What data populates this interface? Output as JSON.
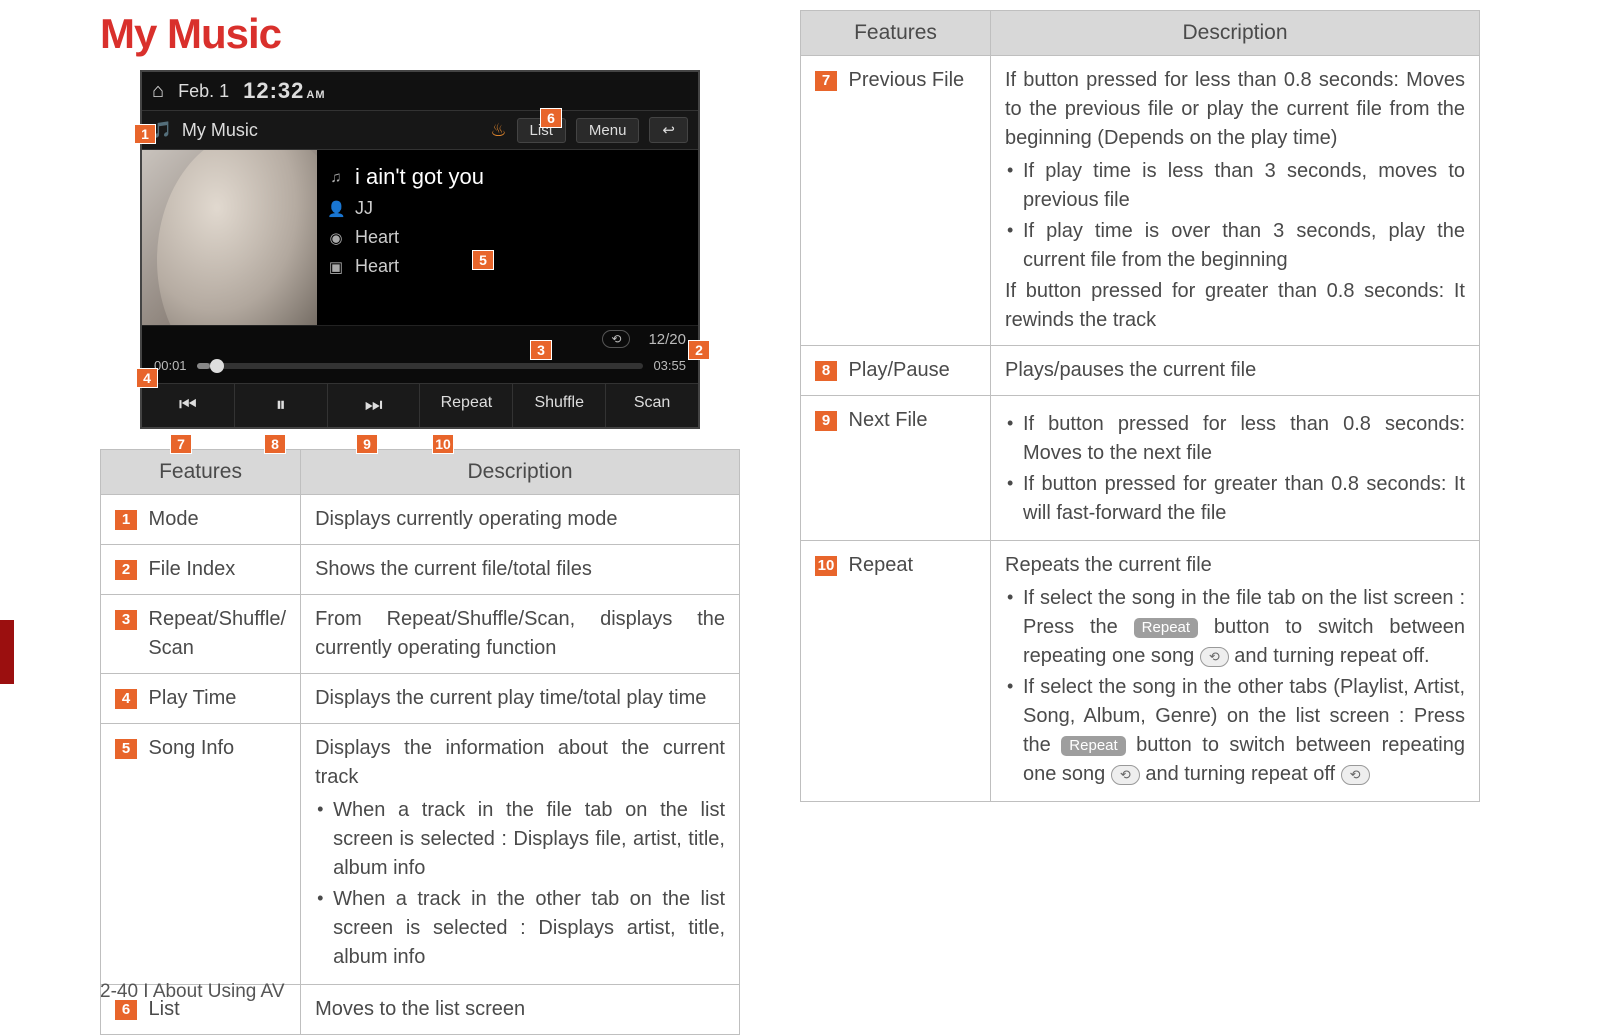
{
  "title": "My Music",
  "footer": "2-40 I  About Using AV",
  "screenshot": {
    "status": {
      "date": "Feb.  1",
      "time": "12:32",
      "ampm": "AM"
    },
    "modebar": {
      "icon": "🎵",
      "label": "My Music",
      "list": "List",
      "menu": "Menu",
      "back": "↩"
    },
    "song": {
      "title": "i ain't got you",
      "artist": "JJ",
      "album": "Heart",
      "album2": "Heart"
    },
    "statusrow": {
      "index": "12/20"
    },
    "time": {
      "elapsed": "00:01",
      "total": "03:55"
    },
    "controls": {
      "prev": "⏮",
      "pause": "⏸",
      "next": "⏭",
      "repeat": "Repeat",
      "shuffle": "Shuffle",
      "scan": "Scan"
    }
  },
  "tables": {
    "headers": {
      "features": "Features",
      "description": "Description"
    },
    "left": [
      {
        "n": "1",
        "f": "Mode",
        "d": "Displays currently operating mode"
      },
      {
        "n": "2",
        "f": "File Index",
        "d": "Shows the current file/total files"
      },
      {
        "n": "3",
        "f": "Repeat/Shuffle/\nScan",
        "d": "From Repeat/Shuffle/Scan, displays the currently operating function"
      },
      {
        "n": "4",
        "f": "Play Time",
        "d": "Displays the current play time/total play time"
      },
      {
        "n": "5",
        "f": "Song Info",
        "d": "Displays the information about the current track",
        "b": [
          "When a track in the file tab on the list screen is selected : Displays file, artist, title, album info",
          "When a track in the other tab on the list screen is selected : Displays artist, title, album info"
        ]
      },
      {
        "n": "6",
        "f": "List",
        "d": "Moves to the list screen"
      }
    ],
    "right": [
      {
        "n": "7",
        "f": "Previous File",
        "pre": "If button pressed for less than 0.8 seconds: Moves to the previous file or play the current file from the beginning (Depends on the play time)",
        "b": [
          "If play time is less than 3 seconds, moves to previous file",
          "If play time is over than 3 seconds, play the current file from the beginning"
        ],
        "post": "If button pressed for greater than 0.8 seconds: It rewinds the track"
      },
      {
        "n": "8",
        "f": "Play/Pause",
        "d": "Plays/pauses the current file"
      },
      {
        "n": "9",
        "f": "Next File",
        "b": [
          "If button pressed for less than 0.8 seconds: Moves to the next file",
          "If button pressed for greater than 0.8 seconds: It will fast-forward the file"
        ]
      },
      {
        "n": "10",
        "f": "Repeat",
        "pre": "Repeats the current file",
        "b_rich": [
          {
            "pre": "If select the song in the file tab on the list screen : Press the ",
            "pill": "Repeat",
            "mid": " button to switch between repeating one song ",
            "chip": "⟲",
            "post": " and turning repeat off."
          },
          {
            "pre": "If select the song in the other tabs (Playlist, Artist, Song, Album, Genre) on the list screen : Press the ",
            "pill": "Repeat",
            "mid": " button to switch between repeating one song ",
            "chip": "⟲",
            "post": " and turning repeat off ",
            "chip2": "⟲"
          }
        ]
      }
    ]
  },
  "callouts": {
    "c1": "1",
    "c2": "2",
    "c3": "3",
    "c4": "4",
    "c5": "5",
    "c6": "6",
    "c7": "7",
    "c8": "8",
    "c9": "9",
    "c10": "10"
  },
  "colors": {
    "accent_red": "#d9302c",
    "marker_orange": "#e8652b",
    "header_gray": "#d8d8d8",
    "border_gray": "#bfbfbf",
    "sidestrip": "#9b0f0f"
  }
}
